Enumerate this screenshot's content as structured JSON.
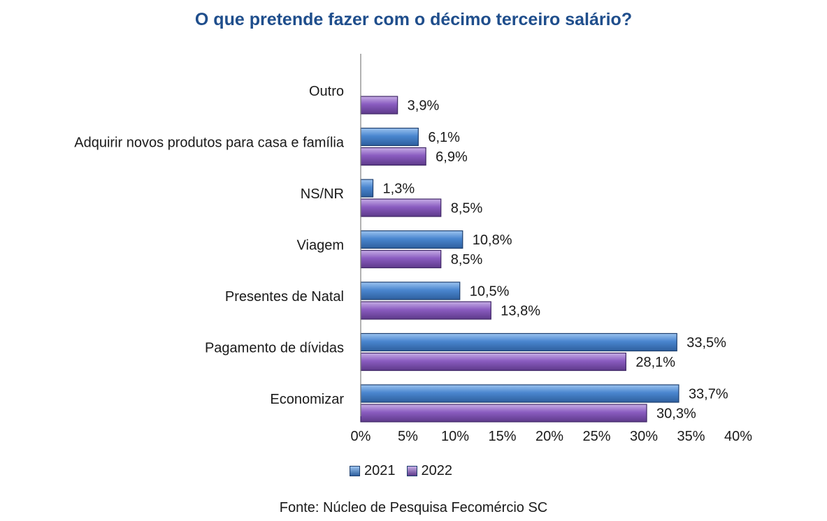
{
  "chart_data": {
    "type": "bar",
    "orientation": "horizontal",
    "title": "O que pretende fazer com o décimo terceiro salário?",
    "categories": [
      "Outro",
      "Adquirir novos produtos para casa e família",
      "NS/NR",
      "Viagem",
      "Presentes de Natal",
      "Pagamento de dívidas",
      "Economizar"
    ],
    "series": [
      {
        "name": "2021",
        "color": "#4a86cf",
        "values": [
          null,
          6.1,
          1.3,
          10.8,
          10.5,
          33.5,
          33.7
        ],
        "labels": [
          "",
          "6,1%",
          "1,3%",
          "10,8%",
          "10,5%",
          "33,5%",
          "33,7%"
        ]
      },
      {
        "name": "2022",
        "color": "#8a5cc0",
        "values": [
          3.9,
          6.9,
          8.5,
          8.5,
          13.8,
          28.1,
          30.3
        ],
        "labels": [
          "3,9%",
          "6,9%",
          "8,5%",
          "8,5%",
          "13,8%",
          "28,1%",
          "30,3%"
        ]
      }
    ],
    "xlim": [
      0,
      40
    ],
    "xticks": [
      0,
      5,
      10,
      15,
      20,
      25,
      30,
      35,
      40
    ],
    "xtick_labels": [
      "0%",
      "5%",
      "10%",
      "15%",
      "20%",
      "25%",
      "30%",
      "35%",
      "40%"
    ],
    "grid": false,
    "legend_position": "bottom"
  },
  "source": "Fonte: Núcleo de Pesquisa Fecomércio SC"
}
